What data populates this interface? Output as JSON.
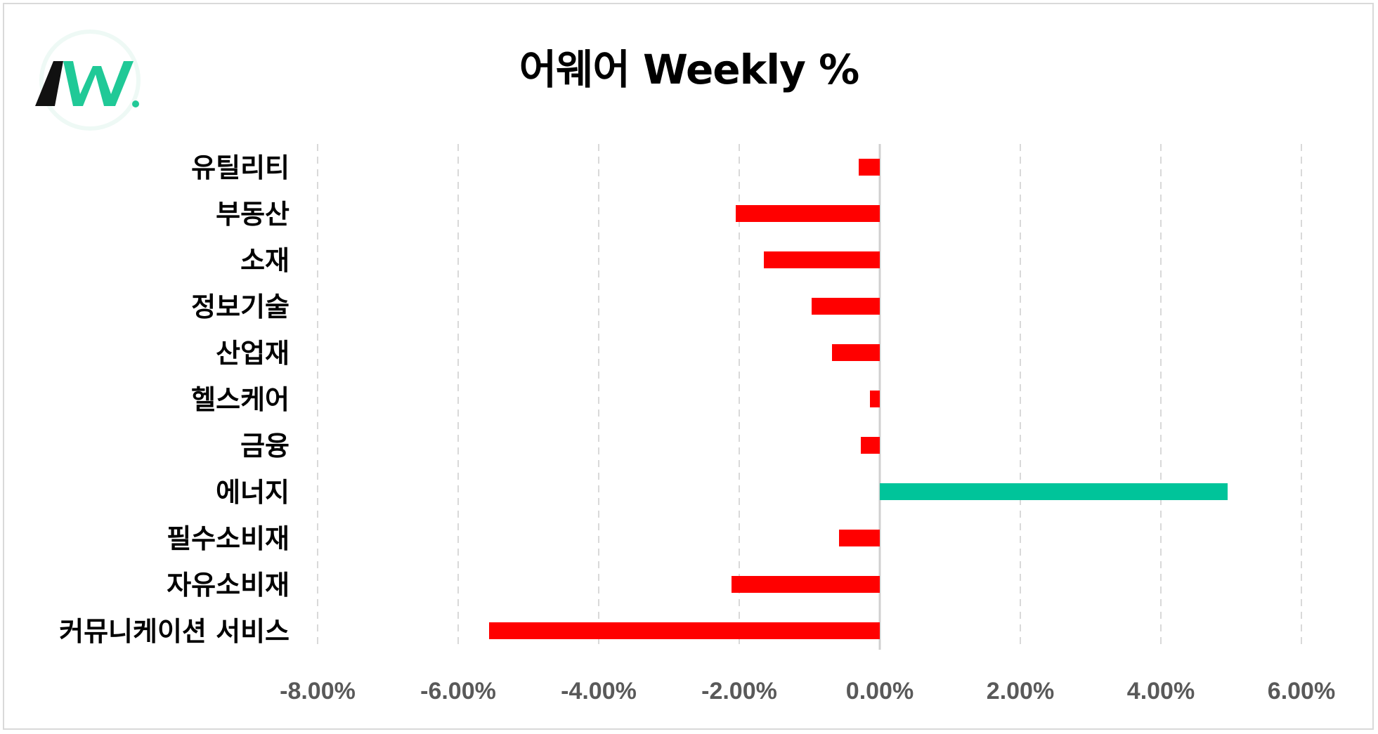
{
  "title": "어웨어 Weekly %",
  "logo": {
    "text": "AW",
    "dot_color": "#20c997"
  },
  "colors": {
    "negative": "#ff0000",
    "positive": "#00c49a",
    "grid": "#d9d9d9",
    "tick_text": "#595959"
  },
  "chart_data": {
    "type": "bar",
    "orientation": "horizontal",
    "title": "어웨어 Weekly %",
    "categories": [
      "유틸리티",
      "부동산",
      "소재",
      "정보기술",
      "산업재",
      "헬스케어",
      "금융",
      "에너지",
      "필수소비재",
      "자유소비재",
      "커뮤니케이션 서비스"
    ],
    "values": [
      -0.3,
      -2.05,
      -1.65,
      -0.97,
      -0.68,
      -0.14,
      -0.27,
      4.95,
      -0.58,
      -2.11,
      -5.56
    ],
    "xlim": [
      -8,
      6
    ],
    "xticks": [
      -8,
      -6,
      -4,
      -2,
      0,
      2,
      4,
      6
    ],
    "xtick_labels": [
      "-8.00%",
      "-6.00%",
      "-4.00%",
      "-2.00%",
      "0.00%",
      "2.00%",
      "4.00%",
      "6.00%"
    ],
    "grid": "vertical dashed",
    "legend": "none"
  }
}
